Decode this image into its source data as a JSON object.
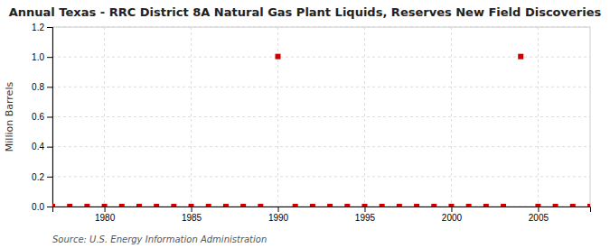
{
  "chart_data": {
    "type": "scatter",
    "title": "Annual Texas - RRC District 8A Natural Gas Plant Liquids, Reserves New Field Discoveries",
    "y_label": "Million Barrels",
    "annotations": [
      "Source: U.S. Energy Information Administration"
    ],
    "x": [
      1977,
      1978,
      1979,
      1980,
      1981,
      1982,
      1983,
      1984,
      1985,
      1986,
      1987,
      1988,
      1989,
      1990,
      1991,
      1992,
      1993,
      1994,
      1995,
      1996,
      1997,
      1998,
      1999,
      2000,
      2001,
      2002,
      2003,
      2004,
      2005,
      2006,
      2007,
      2008
    ],
    "values": [
      0,
      0,
      0,
      0,
      0,
      0,
      0,
      0,
      0,
      0,
      0,
      0,
      0,
      1.003,
      0,
      0,
      0,
      0,
      0,
      0,
      0,
      0,
      0,
      0,
      0,
      0,
      0,
      1.003,
      0,
      0,
      0,
      0
    ],
    "color": "#cc0000",
    "marker": "square",
    "xlim": [
      1977,
      2008
    ],
    "xticks": [
      1980,
      1985,
      1990,
      1995,
      2000,
      2005
    ],
    "ylim": [
      0,
      1.2
    ],
    "yticks": [
      {
        "value": 0,
        "label": "0.0"
      },
      0.2,
      0.4,
      0.6,
      0.8,
      {
        "value": 1,
        "label": "1.0"
      },
      1.2
    ],
    "grid": true
  }
}
